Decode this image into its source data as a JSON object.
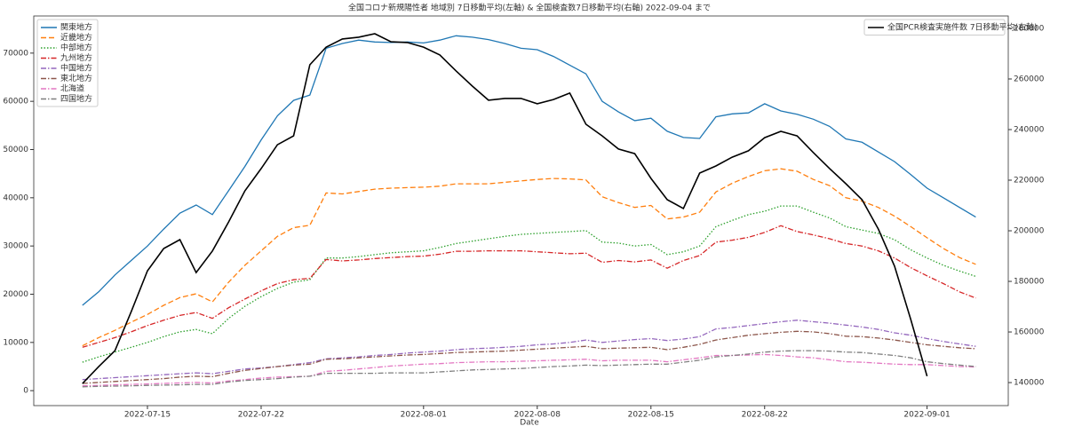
{
  "chart_data": {
    "type": "line",
    "title": "全国コロナ新規陽性者 地域別 7日移動平均(左軸) & 全国検査数7日移動平均(右軸) 2022-09-04 まで",
    "xlabel": "Date",
    "x": [
      "2022-07-11",
      "2022-07-12",
      "2022-07-13",
      "2022-07-14",
      "2022-07-15",
      "2022-07-16",
      "2022-07-17",
      "2022-07-18",
      "2022-07-19",
      "2022-07-20",
      "2022-07-21",
      "2022-07-22",
      "2022-07-23",
      "2022-07-24",
      "2022-07-25",
      "2022-07-26",
      "2022-07-27",
      "2022-07-28",
      "2022-07-29",
      "2022-07-30",
      "2022-07-31",
      "2022-08-01",
      "2022-08-02",
      "2022-08-03",
      "2022-08-04",
      "2022-08-05",
      "2022-08-06",
      "2022-08-07",
      "2022-08-08",
      "2022-08-09",
      "2022-08-10",
      "2022-08-11",
      "2022-08-12",
      "2022-08-13",
      "2022-08-14",
      "2022-08-15",
      "2022-08-16",
      "2022-08-17",
      "2022-08-18",
      "2022-08-19",
      "2022-08-20",
      "2022-08-21",
      "2022-08-22",
      "2022-08-23",
      "2022-08-24",
      "2022-08-25",
      "2022-08-26",
      "2022-08-27",
      "2022-08-28",
      "2022-08-29",
      "2022-08-30",
      "2022-08-31",
      "2022-09-01",
      "2022-09-02",
      "2022-09-03",
      "2022-09-04"
    ],
    "xlim": [
      "2022-07-08",
      "2022-09-06"
    ],
    "xticks": [
      "2022-07-15",
      "2022-07-22",
      "2022-08-01",
      "2022-08-08",
      "2022-08-15",
      "2022-08-22",
      "2022-09-01"
    ],
    "ylim": [
      -3100,
      77700
    ],
    "yticks": [
      0,
      10000,
      20000,
      30000,
      40000,
      50000,
      60000,
      70000
    ],
    "y2lim": [
      130900,
      284900
    ],
    "y2ticks": [
      140000,
      160000,
      180000,
      200000,
      220000,
      240000,
      260000,
      280000
    ],
    "legend": "upper left",
    "y2legend": "upper right",
    "series": [
      {
        "name": "関東地方",
        "color": "#1f77b4",
        "linestyle": "solid",
        "values": [
          17700,
          20500,
          24000,
          27000,
          30000,
          33500,
          36800,
          38500,
          36500,
          41500,
          46500,
          52000,
          57000,
          60200,
          61300,
          71000,
          72000,
          72700,
          72300,
          72200,
          72300,
          72100,
          72700,
          73600,
          73300,
          72800,
          72000,
          71000,
          70700,
          69300,
          67500,
          65700,
          60000,
          57800,
          56000,
          56500,
          53800,
          52500,
          52300,
          56800,
          57400,
          57600,
          59500,
          58000,
          57300,
          56300,
          54800,
          52200,
          51500,
          49500,
          47500,
          44800,
          42000,
          40000,
          38000,
          36000
        ]
      },
      {
        "name": "近畿地方",
        "color": "#ff7f0e",
        "linestyle": "dashed",
        "values": [
          9300,
          11000,
          12500,
          14200,
          15800,
          17700,
          19300,
          20100,
          18400,
          22500,
          26000,
          29000,
          32000,
          33800,
          34300,
          41000,
          40800,
          41300,
          41800,
          42000,
          42100,
          42200,
          42400,
          42900,
          42900,
          42900,
          43200,
          43500,
          43800,
          44000,
          43900,
          43700,
          40200,
          39000,
          38000,
          38400,
          35600,
          36000,
          37000,
          41200,
          43000,
          44400,
          45600,
          46000,
          45500,
          43800,
          42500,
          40000,
          39300,
          38000,
          36200,
          34000,
          31700,
          29500,
          27600,
          26200
        ]
      },
      {
        "name": "中部地方",
        "color": "#2ca02c",
        "linestyle": "dotted",
        "values": [
          5900,
          7000,
          8000,
          9000,
          10000,
          11200,
          12200,
          12700,
          11800,
          15000,
          17500,
          19500,
          21200,
          22500,
          23000,
          27500,
          27500,
          27800,
          28200,
          28600,
          28800,
          29000,
          29700,
          30500,
          31000,
          31500,
          32000,
          32400,
          32600,
          32800,
          33000,
          33200,
          30800,
          30600,
          30000,
          30300,
          28200,
          28800,
          30000,
          34000,
          35300,
          36500,
          37200,
          38300,
          38300,
          37000,
          35800,
          34000,
          33300,
          32600,
          31300,
          29200,
          27500,
          26000,
          24800,
          23700
        ]
      },
      {
        "name": "九州地方",
        "color": "#d62728",
        "linestyle": "dashdot",
        "values": [
          9000,
          10000,
          11000,
          12200,
          13500,
          14600,
          15600,
          16200,
          15000,
          17200,
          19000,
          20700,
          22200,
          23000,
          23300,
          27200,
          26900,
          27100,
          27400,
          27600,
          27800,
          27900,
          28300,
          28900,
          28900,
          29000,
          29000,
          29000,
          28800,
          28600,
          28400,
          28500,
          26600,
          27000,
          26700,
          27100,
          25400,
          27000,
          28000,
          30800,
          31200,
          31800,
          32800,
          34200,
          33000,
          32300,
          31500,
          30500,
          30000,
          29000,
          27500,
          25500,
          23800,
          22200,
          20500,
          19200
        ]
      },
      {
        "name": "中国地方",
        "color": "#9467bd",
        "linestyle": "dashdot",
        "values": [
          2300,
          2500,
          2700,
          2900,
          3100,
          3300,
          3500,
          3700,
          3500,
          4000,
          4500,
          4700,
          5000,
          5400,
          5800,
          6600,
          6800,
          7000,
          7300,
          7500,
          7800,
          8000,
          8200,
          8500,
          8700,
          8800,
          9000,
          9200,
          9500,
          9700,
          10000,
          10500,
          10000,
          10300,
          10600,
          10800,
          10400,
          10700,
          11200,
          12800,
          13100,
          13500,
          13900,
          14300,
          14600,
          14300,
          14000,
          13600,
          13200,
          12700,
          12000,
          11500,
          10800,
          10200,
          9700,
          9200
        ]
      },
      {
        "name": "東北地方",
        "color": "#8c564b",
        "linestyle": "dashdot",
        "values": [
          1500,
          1700,
          1900,
          2100,
          2300,
          2500,
          2800,
          3000,
          2900,
          3600,
          4200,
          4600,
          5000,
          5300,
          5500,
          6500,
          6600,
          6800,
          7000,
          7200,
          7400,
          7500,
          7700,
          7900,
          8000,
          8100,
          8200,
          8400,
          8600,
          8800,
          9000,
          9200,
          8700,
          8800,
          8900,
          9000,
          8500,
          9000,
          9600,
          10500,
          11000,
          11500,
          11800,
          12100,
          12300,
          12200,
          11800,
          11300,
          11200,
          10900,
          10500,
          10000,
          9500,
          9200,
          8900,
          8700
        ]
      },
      {
        "name": "北海道",
        "color": "#e377c2",
        "linestyle": "dashdot",
        "values": [
          1000,
          1100,
          1200,
          1300,
          1400,
          1500,
          1600,
          1700,
          1600,
          2000,
          2300,
          2600,
          2800,
          2900,
          3000,
          4000,
          4200,
          4500,
          4800,
          5100,
          5300,
          5500,
          5600,
          5800,
          5900,
          6000,
          6000,
          6100,
          6200,
          6300,
          6400,
          6500,
          6200,
          6300,
          6300,
          6300,
          6000,
          6400,
          6800,
          7300,
          7300,
          7400,
          7500,
          7300,
          7000,
          6800,
          6400,
          6000,
          5900,
          5700,
          5500,
          5400,
          5400,
          5200,
          5000,
          4900
        ]
      },
      {
        "name": "四国地方",
        "color": "#7f7f7f",
        "linestyle": "dashdot",
        "values": [
          800,
          900,
          950,
          1000,
          1100,
          1150,
          1200,
          1300,
          1300,
          1800,
          2100,
          2300,
          2500,
          2800,
          3000,
          3600,
          3600,
          3600,
          3600,
          3700,
          3700,
          3700,
          3900,
          4100,
          4300,
          4400,
          4500,
          4600,
          4800,
          5000,
          5100,
          5300,
          5200,
          5300,
          5400,
          5500,
          5500,
          5900,
          6300,
          7000,
          7300,
          7600,
          8000,
          8200,
          8300,
          8300,
          8200,
          8000,
          7900,
          7600,
          7300,
          6800,
          6000,
          5600,
          5300,
          5000
        ]
      },
      {
        "name": "全国PCR検査実施件数 7日移動平均(右軸)",
        "color": "#000000",
        "linestyle": "solid",
        "axis": "y2",
        "values": [
          139600,
          146300,
          152600,
          168000,
          184200,
          193000,
          196500,
          183500,
          192000,
          203500,
          215800,
          224600,
          234000,
          237500,
          265600,
          272600,
          275800,
          276500,
          277900,
          274700,
          274400,
          272600,
          269500,
          263200,
          257200,
          251600,
          252300,
          252300,
          250200,
          251900,
          254400,
          242100,
          237500,
          232300,
          230500,
          220700,
          212300,
          208800,
          222800,
          225600,
          229100,
          231600,
          236800,
          239300,
          237500,
          230900,
          224600,
          218600,
          212300,
          200700,
          186000,
          164900,
          142500,
          null,
          null,
          null
        ]
      }
    ]
  }
}
